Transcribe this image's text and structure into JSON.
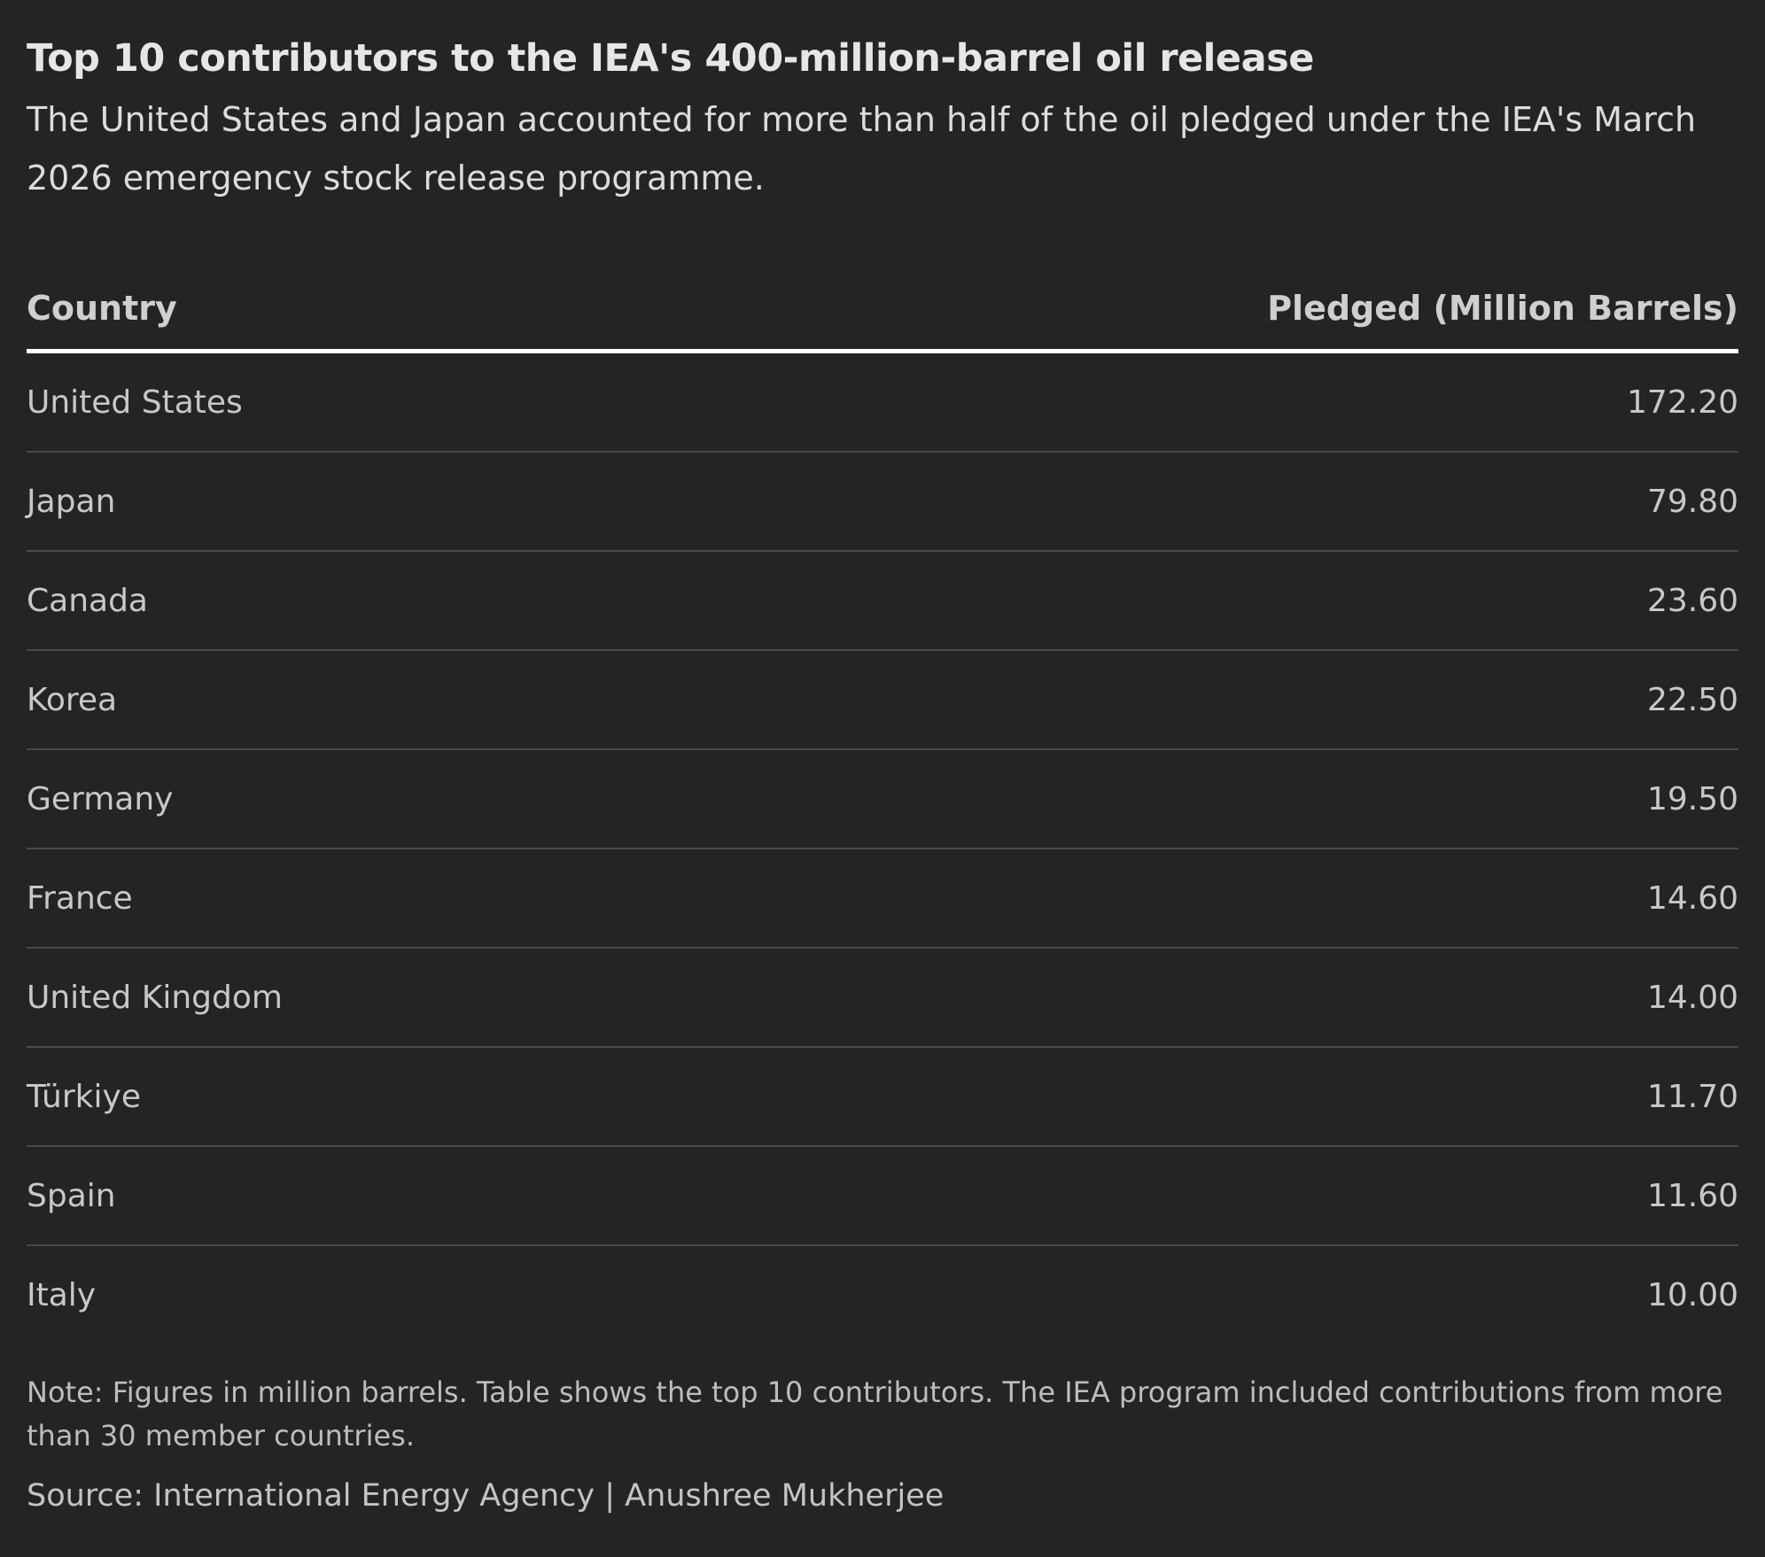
{
  "header": {
    "title": "Top 10 contributors to the IEA's 400-million-barrel oil release",
    "subtitle": "The United States and Japan accounted for more than half of the oil pledged under the IEA's March 2026 emergency stock release programme."
  },
  "chart_data": {
    "type": "table",
    "columns": [
      "Country",
      "Pledged (Million Barrels)"
    ],
    "rows": [
      {
        "country": "United States",
        "value": "172.20"
      },
      {
        "country": "Japan",
        "value": "79.80"
      },
      {
        "country": "Canada",
        "value": "23.60"
      },
      {
        "country": "Korea",
        "value": "22.50"
      },
      {
        "country": "Germany",
        "value": "19.50"
      },
      {
        "country": "France",
        "value": "14.60"
      },
      {
        "country": "United Kingdom",
        "value": "14.00"
      },
      {
        "country": "Türkiye",
        "value": "11.70"
      },
      {
        "country": "Spain",
        "value": "11.60"
      },
      {
        "country": "Italy",
        "value": "10.00"
      }
    ]
  },
  "footer": {
    "note": "Note: Figures in million barrels. Table shows the top 10 contributors. The IEA program included contributions from more than 30 member countries.",
    "source": "Source: International Energy Agency | Anushree Mukherjee"
  },
  "colors": {
    "background": "#242424",
    "header_rule": "#ffffff",
    "row_rule": "#4a4a4a"
  }
}
